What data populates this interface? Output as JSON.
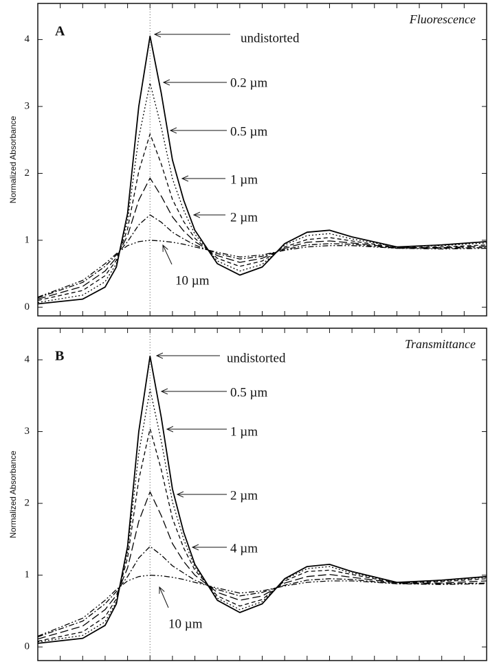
{
  "chart_data": [
    {
      "type": "line",
      "panel_label": "A",
      "title": "Fluorescence",
      "y_label": "Normalized Absorbance",
      "x": [
        0,
        2,
        3,
        3.5,
        4,
        4.5,
        5,
        5.5,
        6,
        6.5,
        7,
        8,
        9,
        10,
        11,
        12,
        13,
        14,
        16,
        18,
        20
      ],
      "xlim": [
        0,
        20
      ],
      "xticks": [
        0,
        1,
        2,
        3,
        4,
        5,
        6,
        7,
        8,
        9,
        10,
        11,
        12,
        13,
        14,
        15,
        16,
        17,
        18,
        19,
        20
      ],
      "ylim": [
        -0.13,
        4.54
      ],
      "yticks": [
        0,
        1,
        2,
        3,
        4
      ],
      "series": [
        {
          "name": "undistorted",
          "color": "#000000",
          "dash": "solid",
          "values": [
            0.05,
            0.12,
            0.3,
            0.6,
            1.4,
            3.0,
            4.05,
            3.2,
            2.2,
            1.6,
            1.15,
            0.65,
            0.48,
            0.6,
            0.95,
            1.12,
            1.15,
            1.05,
            0.9,
            0.93,
            0.98
          ]
        },
        {
          "name": "0.2 µm",
          "color": "#000000",
          "dash": "dot",
          "values": [
            0.07,
            0.18,
            0.38,
            0.65,
            1.29,
            2.54,
            3.35,
            2.69,
            1.92,
            1.45,
            1.09,
            0.69,
            0.54,
            0.64,
            0.93,
            1.07,
            1.1,
            1.02,
            0.9,
            0.92,
            0.96
          ]
        },
        {
          "name": "0.5 µm",
          "color": "#000000",
          "dash": "dash",
          "values": [
            0.1,
            0.25,
            0.47,
            0.7,
            1.17,
            2.03,
            2.59,
            2.14,
            1.61,
            1.28,
            1.03,
            0.73,
            0.61,
            0.69,
            0.9,
            1.01,
            1.04,
            0.99,
            0.89,
            0.9,
            0.93
          ]
        },
        {
          "name": "1 µm",
          "color": "#000000",
          "dash": "longdash",
          "values": [
            0.12,
            0.31,
            0.54,
            0.74,
            1.07,
            1.6,
            1.93,
            1.66,
            1.35,
            1.14,
            0.98,
            0.77,
            0.67,
            0.73,
            0.88,
            0.97,
            0.99,
            0.96,
            0.89,
            0.89,
            0.91
          ]
        },
        {
          "name": "2 µm",
          "color": "#000000",
          "dash": "dashdot",
          "values": [
            0.14,
            0.37,
            0.61,
            0.78,
            0.98,
            1.23,
            1.38,
            1.27,
            1.12,
            1.02,
            0.93,
            0.8,
            0.72,
            0.76,
            0.86,
            0.93,
            0.95,
            0.94,
            0.88,
            0.88,
            0.89
          ]
        },
        {
          "name": "10 µm",
          "color": "#000000",
          "dash": "dashdotdot",
          "values": [
            0.15,
            0.4,
            0.65,
            0.8,
            0.92,
            0.98,
            1.0,
            0.99,
            0.97,
            0.94,
            0.9,
            0.82,
            0.75,
            0.78,
            0.85,
            0.9,
            0.92,
            0.92,
            0.88,
            0.87,
            0.88
          ]
        }
      ]
    },
    {
      "type": "line",
      "panel_label": "B",
      "title": "Transmittance",
      "y_label": "Normalized Absorbance",
      "x": [
        0,
        2,
        3,
        3.5,
        4,
        4.5,
        5,
        5.5,
        6,
        6.5,
        7,
        8,
        9,
        10,
        11,
        12,
        13,
        14,
        16,
        18,
        20
      ],
      "xlim": [
        0,
        20
      ],
      "xticks": [
        0,
        1,
        2,
        3,
        4,
        5,
        6,
        7,
        8,
        9,
        10,
        11,
        12,
        13,
        14,
        15,
        16,
        17,
        18,
        19,
        20
      ],
      "ylim": [
        -0.19,
        4.44
      ],
      "yticks": [
        0,
        1,
        2,
        3,
        4
      ],
      "series": [
        {
          "name": "undistorted",
          "color": "#000000",
          "dash": "solid",
          "values": [
            0.05,
            0.12,
            0.3,
            0.6,
            1.4,
            3.0,
            4.05,
            3.2,
            2.2,
            1.6,
            1.15,
            0.65,
            0.48,
            0.6,
            0.95,
            1.12,
            1.15,
            1.05,
            0.9,
            0.93,
            0.98
          ]
        },
        {
          "name": "0.5 µm",
          "color": "#000000",
          "dash": "dot",
          "values": [
            0.07,
            0.16,
            0.35,
            0.63,
            1.33,
            2.7,
            3.59,
            2.87,
            2.02,
            1.5,
            1.11,
            0.68,
            0.52,
            0.63,
            0.94,
            1.09,
            1.12,
            1.03,
            0.9,
            0.92,
            0.97
          ]
        },
        {
          "name": "1 µm",
          "color": "#000000",
          "dash": "dash",
          "values": [
            0.08,
            0.21,
            0.42,
            0.67,
            1.24,
            2.33,
            3.04,
            2.47,
            1.79,
            1.38,
            1.07,
            0.71,
            0.57,
            0.66,
            0.92,
            1.05,
            1.07,
            1.01,
            0.89,
            0.91,
            0.95
          ]
        },
        {
          "name": "2 µm",
          "color": "#000000",
          "dash": "longdash",
          "values": [
            0.11,
            0.29,
            0.52,
            0.72,
            1.1,
            1.75,
            2.16,
            1.83,
            1.44,
            1.19,
            1.0,
            0.76,
            0.65,
            0.71,
            0.89,
            0.98,
            1.01,
            0.97,
            0.89,
            0.89,
            0.92
          ]
        },
        {
          "name": "4 µm",
          "color": "#000000",
          "dash": "dashdot",
          "values": [
            0.14,
            0.36,
            0.6,
            0.77,
            0.98,
            1.24,
            1.4,
            1.28,
            1.13,
            1.03,
            0.93,
            0.8,
            0.71,
            0.76,
            0.86,
            0.93,
            0.95,
            0.94,
            0.88,
            0.88,
            0.89
          ]
        },
        {
          "name": "10 µm",
          "color": "#000000",
          "dash": "dashdotdot",
          "values": [
            0.15,
            0.4,
            0.65,
            0.8,
            0.92,
            0.98,
            1.0,
            0.99,
            0.97,
            0.94,
            0.9,
            0.82,
            0.75,
            0.78,
            0.85,
            0.9,
            0.92,
            0.92,
            0.88,
            0.87,
            0.88
          ]
        }
      ]
    }
  ]
}
